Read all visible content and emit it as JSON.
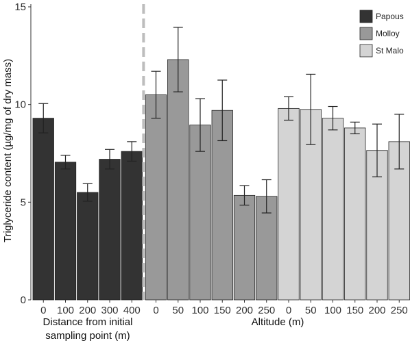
{
  "chart_data": {
    "type": "bar",
    "ylabel": "Triglyceride content (µg/mg of dry mass)",
    "ylim": [
      0,
      15
    ],
    "yticks": [
      0,
      5,
      10,
      15
    ],
    "grid": false,
    "legend": {
      "placement": "top-right",
      "entries": [
        {
          "name": "Papous",
          "color": "#333333"
        },
        {
          "name": "Molloy",
          "color": "#999999"
        },
        {
          "name": "St Malo",
          "color": "#d4d4d4"
        }
      ]
    },
    "xlabels": {
      "left": [
        "Distance from initial",
        "sampling point (m)"
      ],
      "right": "Altitude (m)"
    },
    "series": [
      {
        "name": "Papous",
        "color": "#333333",
        "categories": [
          "0",
          "100",
          "200",
          "300",
          "400"
        ],
        "values": [
          9.3,
          7.05,
          5.5,
          7.2,
          7.6
        ],
        "errors": [
          0.75,
          0.35,
          0.45,
          0.5,
          0.5
        ]
      },
      {
        "name": "Molloy",
        "color": "#999999",
        "categories": [
          "0",
          "50",
          "100",
          "150",
          "200",
          "250"
        ],
        "values": [
          10.5,
          12.3,
          8.95,
          9.7,
          5.35,
          5.3
        ],
        "errors": [
          1.2,
          1.65,
          1.35,
          1.55,
          0.5,
          0.85
        ]
      },
      {
        "name": "St Malo",
        "color": "#d4d4d4",
        "categories": [
          "0",
          "50",
          "100",
          "150",
          "200",
          "250"
        ],
        "values": [
          9.8,
          9.75,
          9.3,
          8.8,
          7.65,
          8.1
        ],
        "errors": [
          0.6,
          1.8,
          0.6,
          0.3,
          1.35,
          1.4
        ]
      }
    ],
    "separator": {
      "style": "dashed",
      "after_series": "Papous"
    }
  }
}
